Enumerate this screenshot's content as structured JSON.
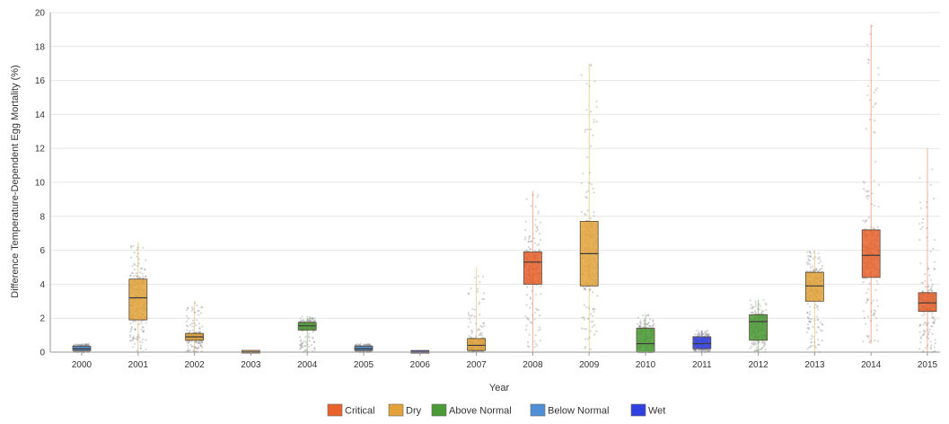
{
  "chart_data": {
    "type": "box",
    "xlabel": "Year",
    "ylabel": "Difference Temperature-Dependent Egg Mortality (%)",
    "ylim": [
      0,
      20
    ],
    "yticks": [
      0,
      2,
      4,
      6,
      8,
      10,
      12,
      14,
      16,
      18,
      20
    ],
    "grid": true,
    "legend_position": "bottom",
    "colors": {
      "Critical": "#e8622c",
      "Dry": "#e3a33a",
      "Above Normal": "#4a9a35",
      "Below Normal": "#4f8fd6",
      "Wet": "#2f3fe0"
    },
    "legend": [
      "Critical",
      "Dry",
      "Above Normal",
      "Below Normal",
      "Wet"
    ],
    "boxes": [
      {
        "year": "2000",
        "category": "Below Normal",
        "min": 0.0,
        "q1": 0.1,
        "median": 0.2,
        "q3": 0.35,
        "max": 0.5
      },
      {
        "year": "2001",
        "category": "Dry",
        "min": 0.0,
        "q1": 1.9,
        "median": 3.2,
        "q3": 4.3,
        "max": 6.5
      },
      {
        "year": "2002",
        "category": "Dry",
        "min": 0.0,
        "q1": 0.7,
        "median": 0.9,
        "q3": 1.1,
        "max": 3.0
      },
      {
        "year": "2003",
        "category": "Dry",
        "min": 0.0,
        "q1": 0.0,
        "median": 0.02,
        "q3": 0.05,
        "max": 0.08
      },
      {
        "year": "2004",
        "category": "Above Normal",
        "min": 0.0,
        "q1": 1.3,
        "median": 1.55,
        "q3": 1.75,
        "max": 2.1
      },
      {
        "year": "2005",
        "category": "Below Normal",
        "min": 0.0,
        "q1": 0.1,
        "median": 0.2,
        "q3": 0.35,
        "max": 0.5
      },
      {
        "year": "2006",
        "category": "Wet",
        "min": 0.0,
        "q1": 0.0,
        "median": 0.02,
        "q3": 0.04,
        "max": 0.06
      },
      {
        "year": "2007",
        "category": "Dry",
        "min": 0.0,
        "q1": 0.1,
        "median": 0.4,
        "q3": 0.8,
        "max": 5.0
      },
      {
        "year": "2008",
        "category": "Critical",
        "min": 0.0,
        "q1": 4.0,
        "median": 5.3,
        "q3": 5.9,
        "max": 9.5
      },
      {
        "year": "2009",
        "category": "Dry",
        "min": 0.0,
        "q1": 3.9,
        "median": 5.8,
        "q3": 7.7,
        "max": 17.0
      },
      {
        "year": "2010",
        "category": "Above Normal",
        "min": 0.0,
        "q1": 0.0,
        "median": 0.5,
        "q3": 1.4,
        "max": 2.2
      },
      {
        "year": "2011",
        "category": "Wet",
        "min": 0.0,
        "q1": 0.2,
        "median": 0.5,
        "q3": 0.9,
        "max": 1.3
      },
      {
        "year": "2012",
        "category": "Above Normal",
        "min": 0.0,
        "q1": 0.7,
        "median": 1.8,
        "q3": 2.2,
        "max": 3.1
      },
      {
        "year": "2013",
        "category": "Dry",
        "min": 0.0,
        "q1": 3.0,
        "median": 3.9,
        "q3": 4.7,
        "max": 6.0
      },
      {
        "year": "2014",
        "category": "Critical",
        "min": 0.5,
        "q1": 4.4,
        "median": 5.7,
        "q3": 7.2,
        "max": 19.3
      },
      {
        "year": "2015",
        "category": "Critical",
        "min": 0.0,
        "q1": 2.4,
        "median": 2.9,
        "q3": 3.5,
        "max": 12.0
      }
    ]
  }
}
